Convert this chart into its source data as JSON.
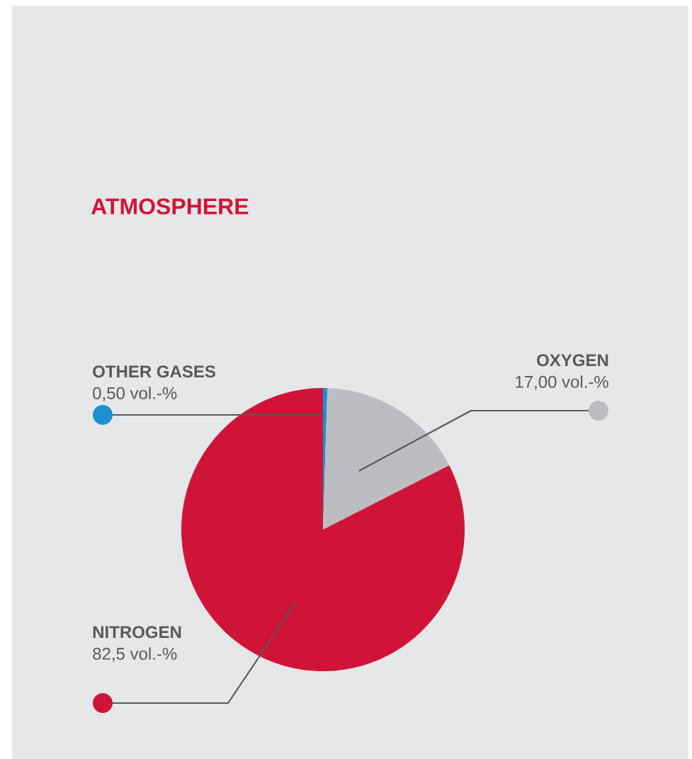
{
  "chart_data": {
    "type": "pie",
    "title": "ATMOSPHERE",
    "categories": [
      "OTHER GASES",
      "OXYGEN",
      "NITROGEN"
    ],
    "values": [
      0.5,
      17.0,
      82.5
    ],
    "value_labels": [
      "0,50 vol.-%",
      "17,00 vol.-%",
      "82,5 vol.-%"
    ],
    "colors": [
      "#1e90d2",
      "#bcbdc0",
      "#d01438"
    ]
  }
}
